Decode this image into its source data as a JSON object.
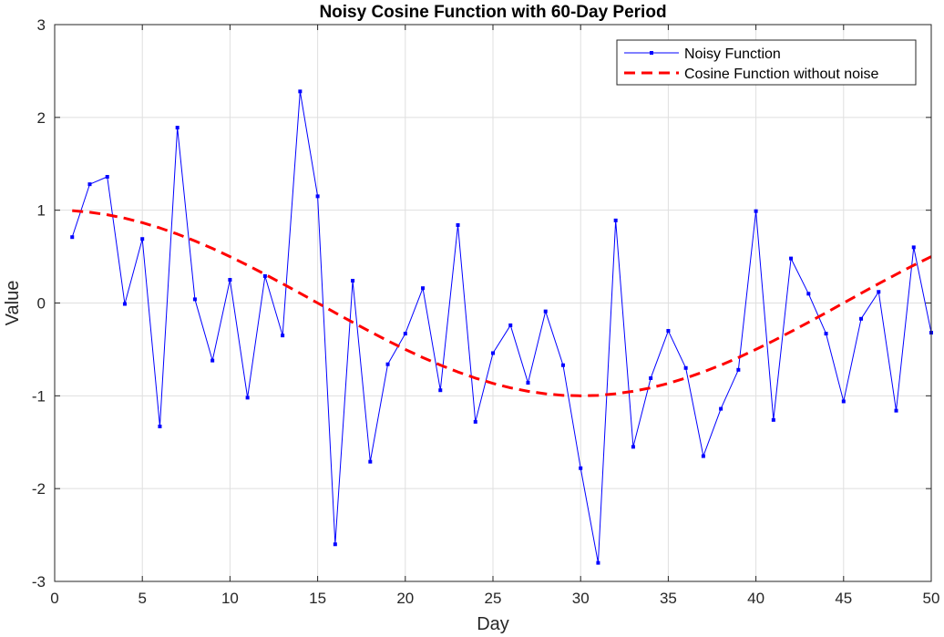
{
  "chart_data": {
    "type": "line",
    "title": "Noisy Cosine Function with 60-Day Period",
    "xlabel": "Day",
    "ylabel": "Value",
    "xlim": [
      0,
      50
    ],
    "ylim": [
      -3,
      3
    ],
    "xticks": [
      0,
      5,
      10,
      15,
      20,
      25,
      30,
      35,
      40,
      45,
      50
    ],
    "yticks": [
      -3,
      -2,
      -1,
      0,
      1,
      2,
      3
    ],
    "xtick_labels": [
      "0",
      "5",
      "10",
      "15",
      "20",
      "25",
      "30",
      "35",
      "40",
      "45",
      "50"
    ],
    "ytick_labels": [
      "-3",
      "-2",
      "-1",
      "0",
      "1",
      "2",
      "3"
    ],
    "grid": true,
    "legend_position": "top-right",
    "x": [
      1,
      2,
      3,
      4,
      5,
      6,
      7,
      8,
      9,
      10,
      11,
      12,
      13,
      14,
      15,
      16,
      17,
      18,
      19,
      20,
      21,
      22,
      23,
      24,
      25,
      26,
      27,
      28,
      29,
      30,
      31,
      32,
      33,
      34,
      35,
      36,
      37,
      38,
      39,
      40,
      41,
      42,
      43,
      44,
      45,
      46,
      47,
      48,
      49,
      50
    ],
    "series": [
      {
        "name": "Noisy Function",
        "color": "#0000ff",
        "style": "solid-with-square-markers",
        "values": [
          0.71,
          1.28,
          1.36,
          -0.01,
          0.69,
          -1.33,
          1.89,
          0.04,
          -0.62,
          0.25,
          -1.02,
          0.29,
          -0.35,
          2.28,
          1.15,
          -2.6,
          0.24,
          -1.71,
          -0.66,
          -0.33,
          0.16,
          -0.94,
          0.84,
          -1.28,
          -0.54,
          -0.24,
          -0.86,
          -0.09,
          -0.67,
          -1.78,
          -2.8,
          0.89,
          -1.55,
          -0.81,
          -0.3,
          -0.7,
          -1.65,
          -1.14,
          -0.72,
          0.99,
          -1.26,
          0.48,
          0.1,
          -0.33,
          -1.06,
          -0.17,
          0.12,
          -1.16,
          0.6,
          -0.32
        ]
      },
      {
        "name": "Cosine Function without noise",
        "color": "#ff0000",
        "style": "dashed",
        "values": [
          0.995,
          0.978,
          0.951,
          0.914,
          0.866,
          0.809,
          0.743,
          0.669,
          0.588,
          0.5,
          0.407,
          0.309,
          0.208,
          0.105,
          0.0,
          -0.105,
          -0.208,
          -0.309,
          -0.407,
          -0.5,
          -0.588,
          -0.669,
          -0.743,
          -0.809,
          -0.866,
          -0.914,
          -0.951,
          -0.978,
          -0.995,
          -1.0,
          -0.995,
          -0.978,
          -0.951,
          -0.914,
          -0.866,
          -0.809,
          -0.743,
          -0.669,
          -0.588,
          -0.5,
          -0.407,
          -0.309,
          -0.208,
          -0.105,
          0.0,
          0.105,
          0.208,
          0.309,
          0.407,
          0.5
        ]
      }
    ]
  }
}
